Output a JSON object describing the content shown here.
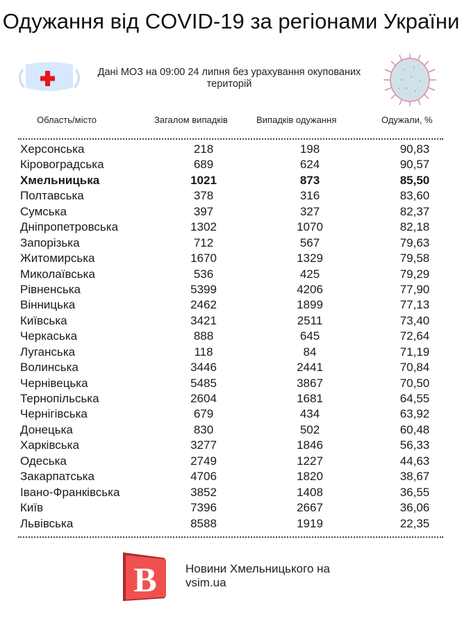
{
  "title": "Одужання від COVID-19 за регіонами України",
  "subtitle": "Дані МОЗ на 09:00 24 липня без урахування окупованих територій",
  "headers": {
    "region": "Область/місто",
    "total": "Загалом випадків",
    "recovered": "Випадків одужання",
    "percent": "Одужали, %"
  },
  "rows": [
    [
      "Херсонська",
      "218",
      "198",
      "90,83"
    ],
    [
      "Кіровоградська",
      "689",
      "624",
      "90,57"
    ],
    [
      "Хмельницька",
      "1021",
      "873",
      "85,50"
    ],
    [
      "Полтавська",
      "378",
      "316",
      "83,60"
    ],
    [
      "Сумська",
      "397",
      "327",
      "82,37"
    ],
    [
      "Дніпропетровська",
      "1302",
      "1070",
      "82,18"
    ],
    [
      "Запорізька",
      "712",
      "567",
      "79,63"
    ],
    [
      "Житомирська",
      "1670",
      "1329",
      "79,58"
    ],
    [
      "Миколаївська",
      "536",
      "425",
      "79,29"
    ],
    [
      "Рівненська",
      "5399",
      "4206",
      "77,90"
    ],
    [
      "Вінницька",
      "2462",
      "1899",
      "77,13"
    ],
    [
      "Київська",
      "3421",
      "2511",
      "73,40"
    ],
    [
      "Черкаська",
      "888",
      "645",
      "72,64"
    ],
    [
      "Луганська",
      "118",
      "84",
      "71,19"
    ],
    [
      "Волинська",
      "3446",
      "2441",
      "70,84"
    ],
    [
      "Чернівецька",
      "5485",
      "3867",
      "70,50"
    ],
    [
      "Тернопільська",
      "2604",
      "1681",
      "64,55"
    ],
    [
      "Чернігівська",
      "679",
      "434",
      "63,92"
    ],
    [
      "Донецька",
      "830",
      "502",
      "60,48"
    ],
    [
      "Харківська",
      "3277",
      "1846",
      "56,33"
    ],
    [
      "Одеська",
      "2749",
      "1227",
      "44,63"
    ],
    [
      "Закарпатська",
      "4706",
      "1820",
      "38,67"
    ],
    [
      "Івано-Франківська",
      "3852",
      "1408",
      "36,55"
    ],
    [
      "Київ",
      "7396",
      "2667",
      "36,06"
    ],
    [
      "Львівська",
      "8588",
      "1919",
      "22,35"
    ]
  ],
  "highlight_row": 2,
  "footer": {
    "line1": "Новини Хмельницького на",
    "line2": "vsim.ua",
    "logo_letter": "B"
  },
  "colors": {
    "logo_red": "#f05050",
    "cross": "#e8141c",
    "mask": "#d6e8fb",
    "virus_fill": "#cfe2ea",
    "virus_stroke": "#d98aa8"
  }
}
